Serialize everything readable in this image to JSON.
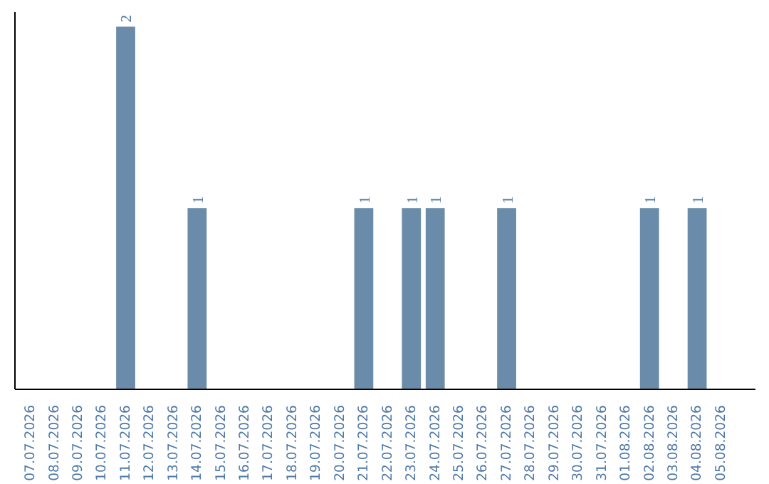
{
  "chart_data": {
    "type": "bar",
    "categories": [
      "07.07.2026",
      "08.07.2026",
      "09.07.2026",
      "10.07.2026",
      "11.07.2026",
      "12.07.2026",
      "13.07.2026",
      "14.07.2026",
      "15.07.2026",
      "16.07.2026",
      "17.07.2026",
      "18.07.2026",
      "19.07.2026",
      "20.07.2026",
      "21.07.2026",
      "22.07.2026",
      "23.07.2026",
      "24.07.2026",
      "25.07.2026",
      "26.07.2026",
      "27.07.2026",
      "28.07.2026",
      "29.07.2026",
      "30.07.2026",
      "31.07.2026",
      "01.08.2026",
      "02.08.2026",
      "03.08.2026",
      "04.08.2026",
      "05.08.2026"
    ],
    "values": [
      0,
      0,
      0,
      0,
      2,
      0,
      0,
      1,
      0,
      0,
      0,
      0,
      0,
      0,
      1,
      0,
      1,
      1,
      0,
      0,
      1,
      0,
      0,
      0,
      0,
      0,
      1,
      0,
      1,
      0
    ],
    "value_labels": [
      null,
      null,
      null,
      null,
      "2",
      null,
      null,
      "1",
      null,
      null,
      null,
      null,
      null,
      null,
      "1",
      null,
      "1",
      "1",
      null,
      null,
      "1",
      null,
      null,
      null,
      null,
      null,
      "1",
      null,
      "1",
      null
    ],
    "color": "#6a8caa",
    "grid": false
  }
}
